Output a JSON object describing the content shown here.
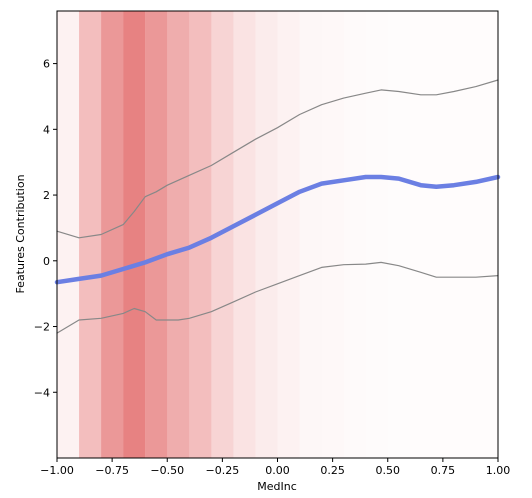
{
  "chart_data": {
    "type": "line",
    "title": "",
    "xlabel": "MedInc",
    "ylabel": "Features Contribution",
    "xlim": [
      -1.0,
      1.0
    ],
    "ylim": [
      -6.0,
      7.6
    ],
    "grid": false,
    "legend": "none",
    "x_ticks": [
      -1.0,
      -0.75,
      -0.5,
      -0.25,
      0.0,
      0.25,
      0.5,
      0.75,
      1.0
    ],
    "x_tick_labels": [
      "−1.00",
      "−0.75",
      "−0.50",
      "−0.25",
      "0.00",
      "0.25",
      "0.50",
      "0.75",
      "1.00"
    ],
    "y_ticks": [
      -4,
      -2,
      0,
      2,
      4,
      6
    ],
    "y_tick_labels": [
      "−4",
      "−2",
      "0",
      "2",
      "4",
      "6"
    ],
    "background_density": {
      "color": "#d62728",
      "bins": [
        {
          "x0": -1.0,
          "x1": -0.9,
          "opacity": 0.06
        },
        {
          "x0": -0.9,
          "x1": -0.8,
          "opacity": 0.3
        },
        {
          "x0": -0.8,
          "x1": -0.7,
          "opacity": 0.48
        },
        {
          "x0": -0.7,
          "x1": -0.6,
          "opacity": 0.58
        },
        {
          "x0": -0.6,
          "x1": -0.5,
          "opacity": 0.48
        },
        {
          "x0": -0.5,
          "x1": -0.4,
          "opacity": 0.38
        },
        {
          "x0": -0.4,
          "x1": -0.3,
          "opacity": 0.3
        },
        {
          "x0": -0.3,
          "x1": -0.2,
          "opacity": 0.2
        },
        {
          "x0": -0.2,
          "x1": -0.1,
          "opacity": 0.13
        },
        {
          "x0": -0.1,
          "x1": 0.0,
          "opacity": 0.09
        },
        {
          "x0": 0.0,
          "x1": 0.1,
          "opacity": 0.06
        },
        {
          "x0": 0.1,
          "x1": 0.2,
          "opacity": 0.04
        },
        {
          "x0": 0.2,
          "x1": 0.3,
          "opacity": 0.03
        },
        {
          "x0": 0.3,
          "x1": 0.4,
          "opacity": 0.025
        },
        {
          "x0": 0.4,
          "x1": 0.5,
          "opacity": 0.02
        },
        {
          "x0": 0.5,
          "x1": 0.6,
          "opacity": 0.015
        },
        {
          "x0": 0.6,
          "x1": 1.0,
          "opacity": 0.01
        }
      ]
    },
    "series": [
      {
        "role": "mean",
        "color": "#6b7fe3",
        "x": [
          -1.0,
          -0.9,
          -0.8,
          -0.7,
          -0.6,
          -0.5,
          -0.4,
          -0.3,
          -0.2,
          -0.1,
          0.0,
          0.1,
          0.2,
          0.3,
          0.4,
          0.47,
          0.55,
          0.65,
          0.72,
          0.8,
          0.9,
          1.0
        ],
        "y": [
          -0.65,
          -0.55,
          -0.45,
          -0.25,
          -0.05,
          0.2,
          0.4,
          0.7,
          1.05,
          1.4,
          1.75,
          2.1,
          2.35,
          2.45,
          2.55,
          2.55,
          2.5,
          2.3,
          2.25,
          2.3,
          2.4,
          2.55
        ]
      },
      {
        "role": "upper-bound",
        "color": "#888888",
        "x": [
          -1.0,
          -0.9,
          -0.8,
          -0.7,
          -0.65,
          -0.6,
          -0.55,
          -0.5,
          -0.4,
          -0.3,
          -0.2,
          -0.1,
          0.0,
          0.1,
          0.2,
          0.3,
          0.4,
          0.47,
          0.55,
          0.65,
          0.72,
          0.8,
          0.9,
          1.0
        ],
        "y": [
          0.9,
          0.7,
          0.8,
          1.1,
          1.5,
          1.95,
          2.1,
          2.3,
          2.6,
          2.9,
          3.3,
          3.7,
          4.05,
          4.45,
          4.75,
          4.95,
          5.1,
          5.2,
          5.15,
          5.05,
          5.05,
          5.15,
          5.3,
          5.5
        ]
      },
      {
        "role": "lower-bound",
        "color": "#888888",
        "x": [
          -1.0,
          -0.9,
          -0.8,
          -0.7,
          -0.65,
          -0.6,
          -0.55,
          -0.5,
          -0.45,
          -0.4,
          -0.3,
          -0.2,
          -0.1,
          0.0,
          0.1,
          0.2,
          0.3,
          0.4,
          0.47,
          0.55,
          0.65,
          0.72,
          0.8,
          0.9,
          1.0
        ],
        "y": [
          -2.2,
          -1.8,
          -1.75,
          -1.6,
          -1.45,
          -1.55,
          -1.8,
          -1.8,
          -1.8,
          -1.75,
          -1.55,
          -1.25,
          -0.95,
          -0.7,
          -0.45,
          -0.2,
          -0.12,
          -0.1,
          -0.05,
          -0.15,
          -0.35,
          -0.5,
          -0.5,
          -0.5,
          -0.45
        ]
      }
    ]
  }
}
